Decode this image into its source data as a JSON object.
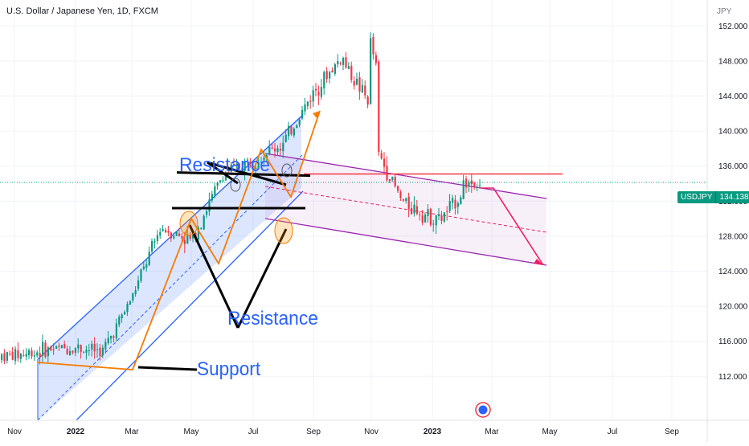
{
  "header": {
    "title": "U.S. Dollar / Japanese Yen, 1D, FXCM",
    "currency": "JPY"
  },
  "price_badge": {
    "symbol": "USDJPY",
    "value": "134.138"
  },
  "colors": {
    "up": "#089981",
    "down": "#f23645",
    "rising_channel": "#2962ff",
    "falling_channel": "#9c27b0",
    "path_arrow": "#f57c00",
    "resistance_line": "#f23645",
    "projection": "#e91e63",
    "annotation_text": "#2962ff"
  },
  "chart_data": {
    "type": "candlestick",
    "symbol": "USDJPY",
    "title": "U.S. Dollar / Japanese Yen, 1D, FXCM",
    "x_tick_labels": [
      "Nov",
      "2022",
      "Mar",
      "May",
      "Jul",
      "Sep",
      "Nov",
      "2023",
      "Mar",
      "May",
      "Jul",
      "Sep"
    ],
    "y_tick_labels": [
      "152.000",
      "148.000",
      "144.000",
      "140.000",
      "136.000",
      "132.000",
      "128.000",
      "124.000",
      "120.000",
      "116.000",
      "112.000"
    ],
    "y_axis_label": "JPY",
    "ylim": [
      108.6,
      153.4
    ],
    "last_price": 134.138,
    "annotations": [
      {
        "text": "Resistance"
      },
      {
        "text": "Resistance"
      },
      {
        "text": "Support"
      }
    ],
    "levels": {
      "support": 114.5,
      "resistance_low": 131.2,
      "resistance_high": 135.0,
      "red_horizontal": 135.1
    },
    "price_path": [
      {
        "month": "Nov 2021",
        "close": 114.4
      },
      {
        "month": "Dec 2021",
        "close": 115.0
      },
      {
        "month": "Jan 2022",
        "close": 115.3
      },
      {
        "month": "Feb 2022",
        "close": 114.9
      },
      {
        "month": "Mar 2022",
        "close": 121.0
      },
      {
        "month": "Apr 2022",
        "close": 129.0
      },
      {
        "month": "May 2022",
        "close": 127.5
      },
      {
        "month": "Jun 2022",
        "close": 135.0
      },
      {
        "month": "Jul 2022",
        "close": 136.8
      },
      {
        "month": "Aug 2022",
        "close": 138.5
      },
      {
        "month": "Sep 2022",
        "close": 144.5
      },
      {
        "month": "Oct 2022",
        "close": 148.5
      },
      {
        "month": "Nov 2022",
        "close": 139.0
      },
      {
        "month": "Dec 2022",
        "close": 132.0
      },
      {
        "month": "Jan 2023",
        "close": 130.0
      },
      {
        "month": "Feb 2023",
        "close": 134.1
      }
    ]
  }
}
